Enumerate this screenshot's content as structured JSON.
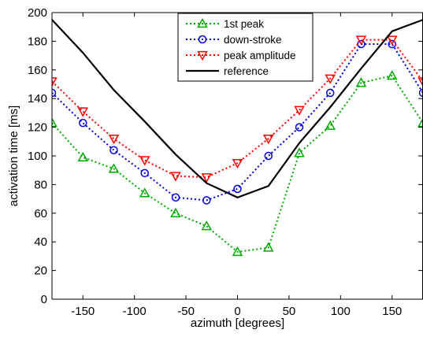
{
  "chart_data": {
    "type": "line",
    "title": "",
    "xlabel": "azimuth [degrees]",
    "ylabel": "activation time [ms]",
    "xlim": [
      -180,
      180
    ],
    "ylim": [
      0,
      200
    ],
    "xticks": [
      -150,
      -100,
      -50,
      0,
      50,
      100,
      150
    ],
    "yticks": [
      0,
      20,
      40,
      60,
      80,
      100,
      120,
      140,
      160,
      180,
      200
    ],
    "grid": false,
    "legend_position": "top-right",
    "series": [
      {
        "name": "1st peak",
        "color": "#00aa00",
        "line_style": "dotted",
        "marker": "triangle-up",
        "x": [
          -180,
          -150,
          -120,
          -90,
          -60,
          -30,
          0,
          30,
          60,
          90,
          120,
          150,
          180
        ],
        "y": [
          123,
          99,
          91,
          74,
          60,
          51,
          33,
          36,
          102,
          121,
          151,
          156,
          123
        ]
      },
      {
        "name": "down-stroke",
        "color": "#0000dd",
        "line_style": "dotted",
        "marker": "circle",
        "x": [
          -180,
          -150,
          -120,
          -90,
          -60,
          -30,
          0,
          30,
          60,
          90,
          120,
          150,
          180
        ],
        "y": [
          144,
          123,
          104,
          88,
          71,
          69,
          77,
          100,
          120,
          144,
          178,
          178,
          144
        ]
      },
      {
        "name": "peak amplitude",
        "color": "#ff0000",
        "line_style": "dotted",
        "marker": "triangle-down",
        "x": [
          -180,
          -150,
          -120,
          -90,
          -60,
          -30,
          0,
          30,
          60,
          90,
          120,
          150,
          180
        ],
        "y": [
          152,
          131,
          112,
          97,
          86,
          85,
          95,
          112,
          132,
          154,
          181,
          181,
          152
        ]
      },
      {
        "name": "reference",
        "color": "#000000",
        "line_style": "solid",
        "marker": "none",
        "x": [
          -180,
          -150,
          -120,
          -90,
          -60,
          -30,
          0,
          30,
          60,
          90,
          120,
          150,
          180
        ],
        "y": [
          195,
          172,
          146,
          124,
          101,
          81,
          71,
          79,
          109,
          134,
          161,
          187,
          195
        ]
      }
    ]
  }
}
